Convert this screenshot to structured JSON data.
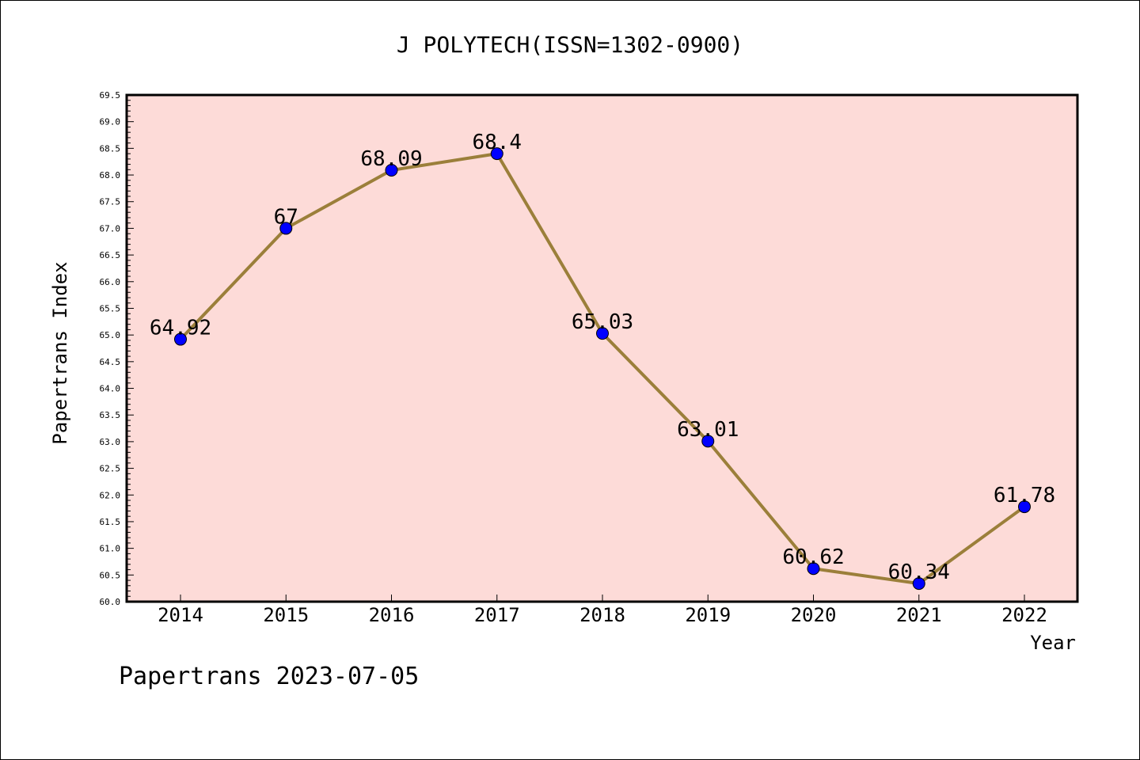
{
  "chart_data": {
    "type": "line",
    "title": "J POLYTECH(ISSN=1302-0900)",
    "xlabel": "Year",
    "ylabel": "Papertrans Index",
    "categories": [
      "2014",
      "2015",
      "2016",
      "2017",
      "2018",
      "2019",
      "2020",
      "2021",
      "2022"
    ],
    "values": [
      64.92,
      67,
      68.09,
      68.4,
      65.03,
      63.01,
      60.62,
      60.34,
      61.78
    ],
    "data_labels": [
      "64.92",
      "67",
      "68.09",
      "68.4",
      "65.03",
      "63.01",
      "60.62",
      "60.34",
      "61.78"
    ],
    "ylim": [
      60.0,
      69.5
    ],
    "yticks": [
      "60.0",
      "60.5",
      "61.0",
      "61.5",
      "62.0",
      "62.5",
      "63.0",
      "63.5",
      "64.0",
      "64.5",
      "65.0",
      "65.5",
      "66.0",
      "66.5",
      "67.0",
      "67.5",
      "68.0",
      "68.5",
      "69.0",
      "69.5"
    ],
    "grid": false,
    "colors": {
      "plot_background": "#fddbd8",
      "line": "#9b7f3a",
      "marker": "#0000ff"
    }
  },
  "footer": "Papertrans 2023-07-05"
}
